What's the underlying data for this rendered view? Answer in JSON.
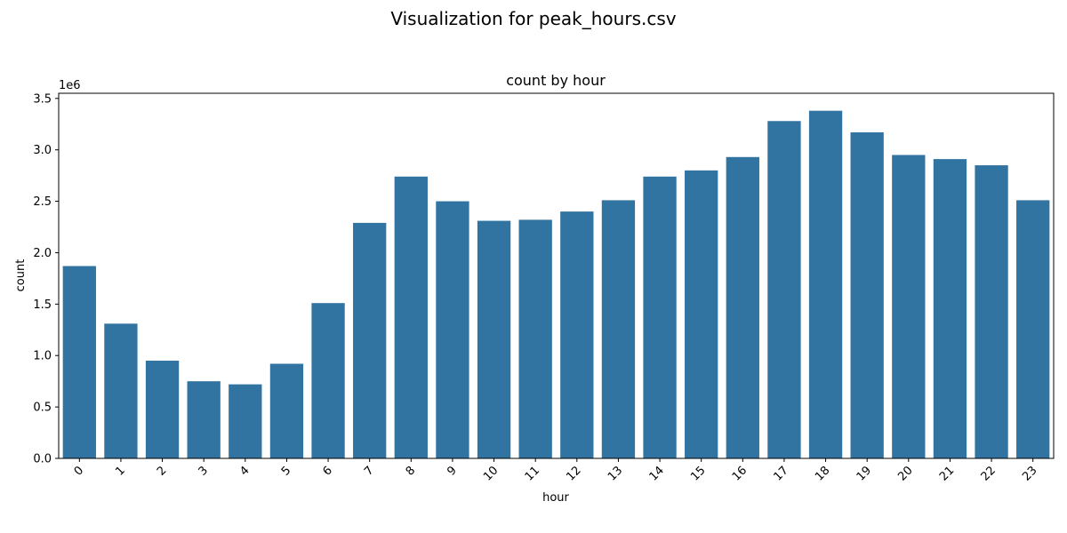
{
  "figure_title": "Visualization for peak_hours.csv",
  "chart_data": {
    "type": "bar",
    "title": "count by hour",
    "xlabel": "hour",
    "ylabel": "count",
    "y_scale_note": "1e6",
    "ylim": [
      0,
      3.55
    ],
    "yticks": [
      "0.0",
      "0.5",
      "1.0",
      "1.5",
      "2.0",
      "2.5",
      "3.0",
      "3.5"
    ],
    "categories": [
      "0",
      "1",
      "2",
      "3",
      "4",
      "5",
      "6",
      "7",
      "8",
      "9",
      "10",
      "11",
      "12",
      "13",
      "14",
      "15",
      "16",
      "17",
      "18",
      "19",
      "20",
      "21",
      "22",
      "23"
    ],
    "values": [
      1.87,
      1.31,
      0.95,
      0.75,
      0.72,
      0.92,
      1.51,
      2.29,
      2.74,
      2.5,
      2.31,
      2.32,
      2.4,
      2.51,
      2.74,
      2.8,
      2.93,
      3.28,
      3.38,
      3.17,
      2.95,
      2.91,
      2.85,
      2.51
    ],
    "bar_color": "#3274a1",
    "grid": false,
    "legend": "none"
  }
}
